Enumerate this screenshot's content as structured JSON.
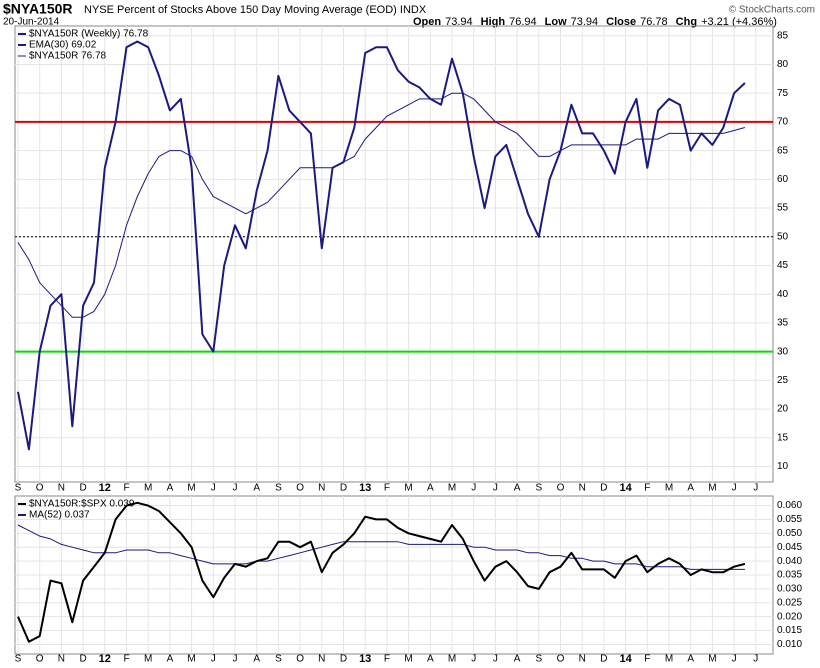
{
  "chart_data": [
    {
      "type": "line",
      "title": "$NYA150R",
      "subtitle": "NYSE Percent of Stocks Above 150 Day Moving Average (EOD) INDX",
      "date": "20-Jun-2014",
      "source": "© StockCharts.com",
      "quote": [
        {
          "label": "Open",
          "value": 73.94
        },
        {
          "label": "High",
          "value": 76.94
        },
        {
          "label": "Low",
          "value": 73.94
        },
        {
          "label": "Close",
          "value": 76.78
        },
        {
          "label": "Chg",
          "value": "+3.21 (+4.36%)"
        }
      ],
      "categories": [
        "S",
        null,
        "O",
        null,
        "N",
        null,
        "D",
        null,
        "12",
        null,
        "F",
        null,
        "M",
        null,
        "A",
        null,
        "M",
        null,
        "J",
        null,
        "J",
        null,
        "A",
        null,
        "S",
        null,
        "O",
        null,
        "N",
        null,
        "D",
        null,
        "13",
        null,
        "F",
        null,
        "M",
        null,
        "A",
        null,
        "M",
        null,
        "J",
        null,
        "J",
        null,
        "A",
        null,
        "S",
        null,
        "O",
        null,
        "N",
        null,
        "D",
        null,
        "14",
        null,
        "F",
        null,
        "M",
        null,
        "A",
        null,
        "M",
        null,
        "J",
        null,
        "J",
        null
      ],
      "series": [
        {
          "name": "$NYA150R (Weekly) 76.78",
          "color": "#1a1a80",
          "width": 2,
          "values": [
            23,
            13,
            30,
            38,
            40,
            17,
            38,
            42,
            62,
            70,
            83,
            84,
            83,
            78,
            72,
            74,
            62,
            33,
            30,
            45,
            52,
            48,
            58,
            65,
            78,
            72,
            70,
            68,
            48,
            62,
            63,
            69,
            82,
            83,
            83,
            79,
            77,
            76,
            74,
            73,
            81,
            75,
            64,
            55,
            64,
            66,
            60,
            54,
            50,
            60,
            65,
            73,
            68,
            68,
            65,
            61,
            70,
            74,
            62,
            72,
            74,
            73,
            65,
            68,
            66,
            69,
            75,
            76.78,
            null,
            null
          ]
        },
        {
          "name": "EMA(30) 69.02",
          "color": "#1a1a80",
          "width": 1,
          "values": [
            49,
            46,
            42,
            40,
            38,
            36,
            36,
            37,
            40,
            45,
            52,
            57,
            61,
            64,
            65,
            65,
            64,
            60,
            57,
            56,
            55,
            54,
            55,
            56,
            58,
            60,
            62,
            62,
            62,
            62,
            63,
            64,
            67,
            69,
            71,
            72,
            73,
            74,
            74,
            74,
            75,
            75,
            74,
            72,
            70,
            69,
            68,
            66,
            64,
            64,
            65,
            66,
            66,
            66,
            66,
            66,
            66,
            67,
            67,
            67,
            68,
            68,
            68,
            68,
            68,
            68,
            68.5,
            69.02,
            null,
            null
          ]
        }
      ],
      "legend_extra": "$NYA150R 76.78",
      "hlines": [
        {
          "value": 70,
          "color": "#e00000",
          "style": "solid"
        },
        {
          "value": 50,
          "color": "#000000",
          "style": "dotted"
        },
        {
          "value": 30,
          "color": "#00dd00",
          "style": "solid"
        }
      ],
      "ylim": [
        8,
        86
      ],
      "yticks": [
        10,
        15,
        20,
        25,
        30,
        35,
        40,
        45,
        50,
        55,
        60,
        65,
        70,
        75,
        80,
        85
      ]
    },
    {
      "type": "line",
      "categories": [
        "S",
        null,
        "O",
        null,
        "N",
        null,
        "D",
        null,
        "12",
        null,
        "F",
        null,
        "M",
        null,
        "A",
        null,
        "M",
        null,
        "J",
        null,
        "J",
        null,
        "A",
        null,
        "S",
        null,
        "O",
        null,
        "N",
        null,
        "D",
        null,
        "13",
        null,
        "F",
        null,
        "M",
        null,
        "A",
        null,
        "M",
        null,
        "J",
        null,
        "J",
        null,
        "A",
        null,
        "S",
        null,
        "O",
        null,
        "N",
        null,
        "D",
        null,
        "14",
        null,
        "F",
        null,
        "M",
        null,
        "A",
        null,
        "M",
        null,
        "J",
        null,
        "J",
        null
      ],
      "series": [
        {
          "name": "$NYA150R:$SPX 0.039",
          "color": "#000000",
          "width": 2,
          "values": [
            0.02,
            0.011,
            0.013,
            0.033,
            0.032,
            0.018,
            0.033,
            0.038,
            0.043,
            0.055,
            0.06,
            0.061,
            0.06,
            0.058,
            0.054,
            0.05,
            0.045,
            0.033,
            0.027,
            0.034,
            0.039,
            0.038,
            0.04,
            0.041,
            0.047,
            0.047,
            0.045,
            0.047,
            0.036,
            0.043,
            0.046,
            0.05,
            0.056,
            0.055,
            0.055,
            0.052,
            0.05,
            0.049,
            0.048,
            0.047,
            0.053,
            0.048,
            0.04,
            0.033,
            0.038,
            0.04,
            0.036,
            0.031,
            0.03,
            0.036,
            0.038,
            0.043,
            0.037,
            0.037,
            0.037,
            0.034,
            0.04,
            0.042,
            0.036,
            0.039,
            0.041,
            0.039,
            0.035,
            0.037,
            0.036,
            0.036,
            0.038,
            0.039,
            null,
            null
          ]
        },
        {
          "name": "MA(52) 0.037",
          "color": "#1a1a80",
          "width": 1,
          "values": [
            0.053,
            0.051,
            0.049,
            0.048,
            0.046,
            0.045,
            0.044,
            0.043,
            0.043,
            0.043,
            0.044,
            0.044,
            0.044,
            0.043,
            0.043,
            0.042,
            0.041,
            0.04,
            0.039,
            0.039,
            0.039,
            0.039,
            0.04,
            0.04,
            0.041,
            0.042,
            0.043,
            0.044,
            0.045,
            0.046,
            0.047,
            0.047,
            0.047,
            0.047,
            0.047,
            0.047,
            0.046,
            0.046,
            0.046,
            0.046,
            0.046,
            0.046,
            0.045,
            0.045,
            0.044,
            0.044,
            0.044,
            0.043,
            0.043,
            0.042,
            0.042,
            0.041,
            0.041,
            0.04,
            0.04,
            0.039,
            0.039,
            0.039,
            0.038,
            0.038,
            0.038,
            0.038,
            0.037,
            0.037,
            0.037,
            0.037,
            0.037,
            0.037,
            null,
            null
          ]
        }
      ],
      "ylim": [
        0.008,
        0.062
      ],
      "yticks": [
        {
          "value": 0.01,
          "label": "0.010"
        },
        {
          "value": 0.015,
          "label": "0.015"
        },
        {
          "value": 0.02,
          "label": "0.020"
        },
        {
          "value": 0.025,
          "label": "0.025"
        },
        {
          "value": 0.03,
          "label": "0.030"
        },
        {
          "value": 0.035,
          "label": "0.035"
        },
        {
          "value": 0.04,
          "label": "0.040"
        },
        {
          "value": 0.045,
          "label": "0.045"
        },
        {
          "value": 0.05,
          "label": "0.050"
        },
        {
          "value": 0.055,
          "label": "0.055"
        },
        {
          "value": 0.06,
          "label": "0.060"
        }
      ]
    }
  ]
}
